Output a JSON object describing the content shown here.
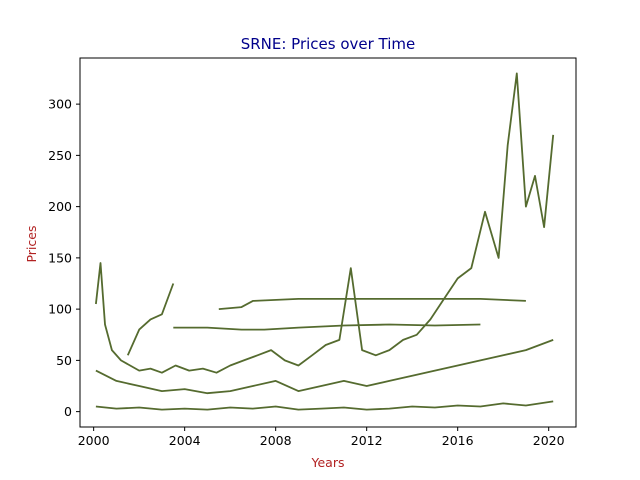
{
  "chart_data": {
    "type": "line",
    "title": "SRNE: Prices over Time",
    "xlabel": "Years",
    "ylabel": "Prices",
    "xlim": [
      1999.4,
      2021.2
    ],
    "ylim": [
      -15,
      345
    ],
    "x_ticks": [
      "2000",
      "2004",
      "2008",
      "2012",
      "2016",
      "2020"
    ],
    "y_ticks": [
      "0",
      "50",
      "100",
      "150",
      "200",
      "250",
      "300"
    ],
    "grid": false,
    "legend": "none",
    "colors": {
      "line": "#556b2f",
      "title": "#00008b",
      "axis_label": "#b22222",
      "axes": "#000000"
    },
    "series": [
      {
        "x": [
          2000.1,
          2000.3,
          2000.5,
          2000.8,
          2001.2,
          2001.6,
          2002.0,
          2002.5,
          2003.0,
          2003.6,
          2004.2,
          2004.8,
          2005.4,
          2006.0,
          2006.6,
          2007.2,
          2007.8,
          2008.4,
          2009.0,
          2009.6,
          2010.2,
          2010.8,
          2011.3,
          2011.8,
          2012.4,
          2013.0,
          2013.6,
          2014.2,
          2014.8,
          2015.4,
          2016.0,
          2016.6,
          2017.2,
          2017.8,
          2018.2,
          2018.6,
          2019.0,
          2019.4,
          2019.8,
          2020.2
        ],
        "y": [
          105,
          145,
          85,
          60,
          50,
          45,
          40,
          42,
          38,
          45,
          40,
          42,
          38,
          45,
          50,
          55,
          60,
          50,
          45,
          55,
          65,
          70,
          140,
          60,
          55,
          60,
          70,
          75,
          90,
          110,
          130,
          140,
          195,
          150,
          260,
          330,
          200,
          230,
          180,
          270
        ]
      },
      {
        "x": [
          2000.1,
          2001.0,
          2002.0,
          2003.0,
          2004.0,
          2005.0,
          2006.0,
          2007.0,
          2008.0,
          2009.0,
          2010.0,
          2011.0,
          2012.0,
          2013.0,
          2014.0,
          2015.0,
          2016.0,
          2017.0,
          2018.0,
          2019.0,
          2020.2
        ],
        "y": [
          40,
          30,
          25,
          20,
          22,
          18,
          20,
          25,
          30,
          20,
          25,
          30,
          25,
          30,
          35,
          40,
          45,
          50,
          55,
          60,
          70
        ]
      },
      {
        "x": [
          2001.5,
          2002.0,
          2002.5,
          2003.0,
          2003.5
        ],
        "y": [
          55,
          80,
          90,
          95,
          125
        ]
      },
      {
        "x": [
          2003.5,
          2005.0,
          2006.5,
          2007.5,
          2009.0,
          2011.0,
          2013.0,
          2015.0,
          2017.0
        ],
        "y": [
          82,
          82,
          80,
          80,
          82,
          84,
          85,
          84,
          85
        ]
      },
      {
        "x": [
          2005.5,
          2006.5,
          2007.0,
          2009.0,
          2011.0,
          2013.0,
          2015.0,
          2017.0,
          2019.0
        ],
        "y": [
          100,
          102,
          108,
          110,
          110,
          110,
          110,
          110,
          108
        ]
      },
      {
        "x": [
          2000.1,
          2001.0,
          2002.0,
          2003.0,
          2004.0,
          2005.0,
          2006.0,
          2007.0,
          2008.0,
          2009.0,
          2010.0,
          2011.0,
          2012.0,
          2013.0,
          2014.0,
          2015.0,
          2016.0,
          2017.0,
          2018.0,
          2019.0,
          2020.2
        ],
        "y": [
          5,
          3,
          4,
          2,
          3,
          2,
          4,
          3,
          5,
          2,
          3,
          4,
          2,
          3,
          5,
          4,
          6,
          5,
          8,
          6,
          10
        ]
      }
    ]
  }
}
